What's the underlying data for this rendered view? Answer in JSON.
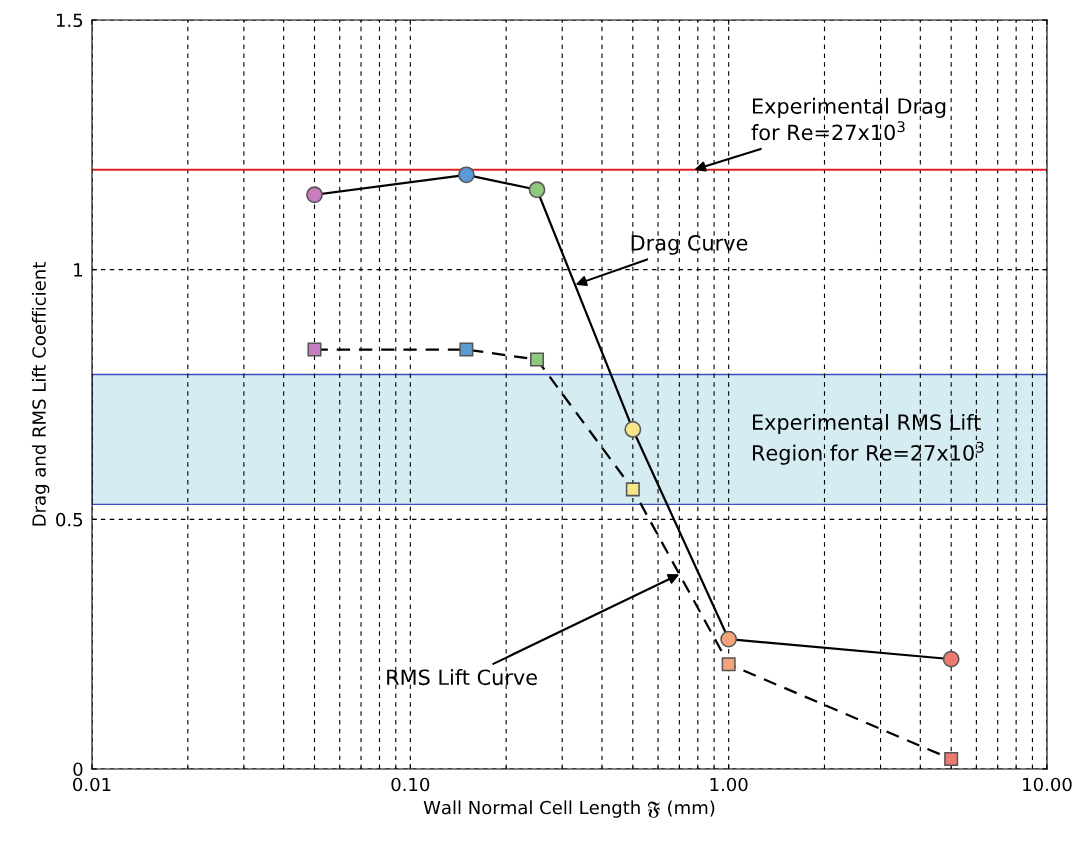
{
  "chart_data": {
    "type": "line",
    "xlabel": "Wall Normal Cell Length 𝔉 (mm)",
    "ylabel": "Drag and RMS Lift Coefficient",
    "log": "x",
    "grid": true,
    "xlim": [
      0.01,
      10
    ],
    "ylim": [
      0,
      1.5
    ],
    "xticks": [
      0.01,
      {
        "value": 0.1,
        "label": "0.10"
      },
      {
        "value": 1,
        "label": "1.00"
      },
      {
        "value": 10,
        "label": "10.00"
      }
    ],
    "yticks": [
      0,
      0.5,
      1,
      1.5
    ],
    "series": [
      {
        "x": [
          0.05,
          0.15,
          0.25,
          0.5,
          1,
          5
        ],
        "values": [
          1.15,
          1.19,
          1.16,
          0.68,
          0.26,
          0.22
        ],
        "color": "#000000",
        "line_style": "solid",
        "marker": "circle",
        "colors": [
          "#c77dc0",
          "#5b9bd5",
          "#8fc97e",
          "#f7e58a",
          "#f4a37a",
          "#ec7a72"
        ]
      },
      {
        "x": [
          0.05,
          0.15,
          0.25,
          0.5,
          1,
          5
        ],
        "values": [
          0.84,
          0.84,
          0.82,
          0.56,
          0.21,
          0.02
        ],
        "color": "#000000",
        "line_style": "dashed",
        "marker": "square",
        "colors": [
          "#c77dc0",
          "#5b9bd5",
          "#8fc97e",
          "#f7e58a",
          "#f4a37a",
          "#ec7a72"
        ]
      }
    ],
    "ref_lines": [
      {
        "axis": "y",
        "value": 1.2,
        "color": "#e02020"
      }
    ],
    "bands": [
      {
        "axis": "y",
        "from": 0.53,
        "to": 0.79,
        "label": "Experimental RMS Lift\nRegion for Re=27x10$^{3}$",
        "color": "#d4ecf2"
      }
    ],
    "annotations": [
      {
        "text": "Experimental Drag\nfor Re=27x10$^{3}$",
        "x": 0.78,
        "y": 1.2
      },
      {
        "text": "Drag Curve",
        "x": 0.33,
        "y": 0.97
      },
      {
        "text": "RMS Lift Curve",
        "x": 0.7,
        "y": 0.39
      }
    ]
  }
}
